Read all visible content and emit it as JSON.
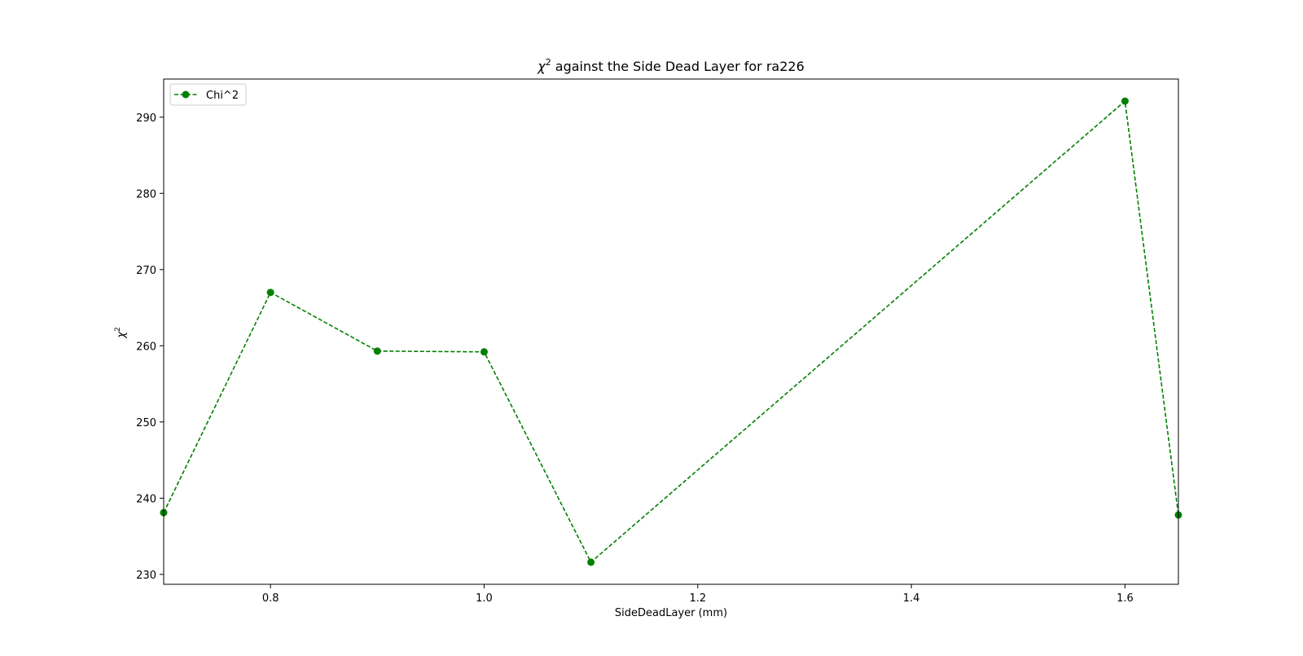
{
  "chart_data": {
    "type": "line",
    "title_prefix": "χ",
    "title_sup": "2",
    "title_rest": " against the Side Dead Layer for ra226",
    "xlabel": "SideDeadLayer (mm)",
    "ylabel_base": "χ",
    "ylabel_sup": "2",
    "xlim": [
      0.7,
      1.65
    ],
    "ylim": [
      228.7,
      295.0
    ],
    "xticks": [
      0.8,
      1.0,
      1.2,
      1.4,
      1.6
    ],
    "xtick_labels": [
      "0.8",
      "1.0",
      "1.2",
      "1.4",
      "1.6"
    ],
    "yticks": [
      230,
      240,
      250,
      260,
      270,
      280,
      290
    ],
    "ytick_labels": [
      "230",
      "240",
      "250",
      "260",
      "270",
      "280",
      "290"
    ],
    "grid": false,
    "legend_position": "top-left",
    "series": [
      {
        "name": "Chi^2",
        "color": "#008000",
        "line_style": "dashed",
        "marker": "circle",
        "x": [
          0.7,
          0.8,
          0.9,
          1.0,
          1.1,
          1.6,
          1.65
        ],
        "y": [
          238.1,
          267.0,
          259.3,
          259.2,
          231.6,
          292.1,
          237.8
        ]
      }
    ]
  }
}
